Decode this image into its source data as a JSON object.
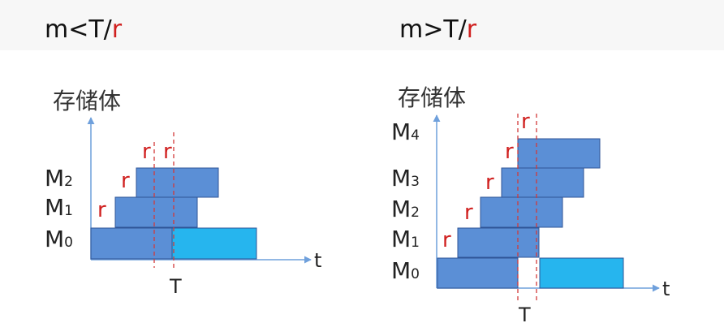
{
  "left": {
    "heading": {
      "main": "m<T/",
      "accent": "r"
    },
    "y_axis_label": "存储体",
    "x_axis_label": "t",
    "t_marker": "T",
    "modules": [
      {
        "main": "M",
        "sub": "0"
      },
      {
        "main": "M",
        "sub": "1"
      },
      {
        "main": "M",
        "sub": "2"
      }
    ],
    "r_labels": [
      "r",
      "r",
      "r",
      "r"
    ]
  },
  "right": {
    "heading": {
      "main": "m>T/",
      "accent": "r"
    },
    "y_axis_label": "存储体",
    "x_axis_label": "t",
    "t_marker": "T",
    "modules": [
      {
        "main": "M",
        "sub": "0"
      },
      {
        "main": "M",
        "sub": "1"
      },
      {
        "main": "M",
        "sub": "2"
      },
      {
        "main": "M",
        "sub": "3"
      },
      {
        "main": "M",
        "sub": "4"
      }
    ],
    "r_labels": [
      "r",
      "r",
      "r",
      "r",
      "r"
    ]
  },
  "colors": {
    "busy_fill": "#5b8fd6",
    "busy_stroke": "#2f5597",
    "repeat_fill": "#26b5ee",
    "axis": "#6fa0dc",
    "dashed": "#d23a3a",
    "accent_text": "#d0201f"
  }
}
